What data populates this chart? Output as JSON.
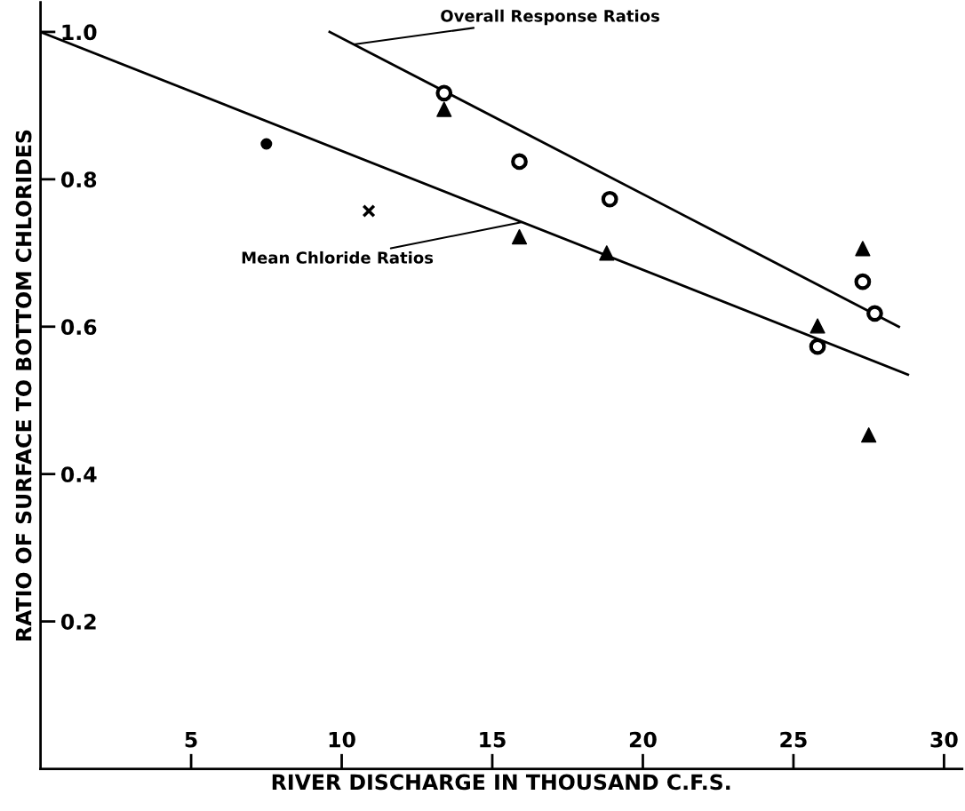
{
  "chart_data": {
    "type": "scatter",
    "xlabel": "RIVER DISCHARGE IN THOUSAND C.F.S.",
    "ylabel": "RATIO OF SURFACE TO BOTTOM CHLORIDES",
    "series": [
      {
        "marker": "circle",
        "color": "#000000",
        "x": [
          13.4,
          15.9,
          18.9,
          27.3,
          27.7,
          25.8
        ],
        "values": [
          0.917,
          0.824,
          0.773,
          0.661,
          0.618,
          0.573
        ]
      },
      {
        "marker": "triangle",
        "color": "#000000",
        "x": [
          13.4,
          15.9,
          18.8,
          27.3,
          25.8,
          27.5
        ],
        "values": [
          0.895,
          0.722,
          0.7,
          0.706,
          0.601,
          0.453
        ]
      },
      {
        "marker": "dot",
        "color": "#000000",
        "x": [
          7.5
        ],
        "values": [
          0.848
        ]
      },
      {
        "marker": "cross",
        "color": "#000000",
        "x": [
          10.9
        ],
        "values": [
          0.757
        ]
      },
      {
        "type": "line",
        "color": "#000000",
        "x": [
          9.6,
          28.5
        ],
        "values": [
          1.0,
          0.6
        ]
      },
      {
        "type": "line",
        "color": "#000000",
        "x": [
          0,
          28.8
        ],
        "values": [
          1.0,
          0.535
        ]
      }
    ],
    "annotations": [
      {
        "text": "Overall Response Ratios",
        "x": 10.4,
        "y": 0.983
      },
      {
        "text": "Mean Chloride Ratios",
        "x": 16.0,
        "y": 0.742
      }
    ],
    "xlim": [
      0,
      30.6
    ],
    "ylim": [
      0,
      1.04
    ],
    "xticks": [
      5,
      10,
      15,
      20,
      25,
      30
    ],
    "yticks": [
      0.2,
      0.4,
      0.6,
      0.8,
      {
        "value": 1,
        "label": "1.0"
      }
    ],
    "grid": false,
    "legend": false
  }
}
